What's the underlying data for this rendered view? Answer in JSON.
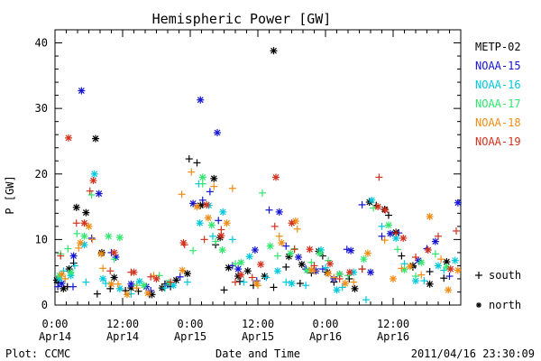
{
  "chart_data": {
    "type": "scatter",
    "title": "Hemispheric Power [GW]",
    "xlabel": "Date and Time",
    "ylabel": "P [GW]",
    "x_unit": "hours",
    "xlim": [
      0,
      72
    ],
    "ylim": [
      0,
      42
    ],
    "yticks": [
      0,
      10,
      20,
      30,
      40
    ],
    "x_ticks": [
      {
        "x": 0,
        "line1": "0:00",
        "line2": "Apr14"
      },
      {
        "x": 12,
        "line1": "12:00",
        "line2": "Apr14"
      },
      {
        "x": 24,
        "line1": "0:00",
        "line2": "Apr15"
      },
      {
        "x": 36,
        "line1": "12:00",
        "line2": "Apr15"
      },
      {
        "x": 48,
        "line1": "0:00",
        "line2": "Apr16"
      },
      {
        "x": 60,
        "line1": "12:00",
        "line2": "Apr16"
      }
    ],
    "grid": false,
    "legend_position": "right",
    "marker_legend": [
      {
        "symbol": "+",
        "label": "south"
      },
      {
        "symbol": "*",
        "label": "north"
      }
    ],
    "series": [
      {
        "name": "METP-02",
        "color": "#000000",
        "south": [
          [
            0.6,
            3.4
          ],
          [
            2.2,
            2.8
          ],
          [
            3.3,
            6.4
          ],
          [
            7.5,
            1.7
          ],
          [
            9.8,
            2.5
          ],
          [
            12.5,
            2.2
          ],
          [
            14.8,
            2.1
          ],
          [
            16.8,
            1.6
          ],
          [
            19.5,
            3.2
          ],
          [
            20.5,
            2.8
          ],
          [
            23.8,
            22.3
          ],
          [
            25.2,
            21.7
          ],
          [
            26.2,
            15.4
          ],
          [
            28.5,
            9.2
          ],
          [
            30,
            2.3
          ],
          [
            32.8,
            3.6
          ],
          [
            35.2,
            3.0
          ],
          [
            38.8,
            2.7
          ],
          [
            41,
            5.8
          ],
          [
            43.5,
            3.3
          ],
          [
            45.5,
            4.9
          ],
          [
            47.5,
            7.5
          ],
          [
            49.5,
            3.5
          ],
          [
            52.2,
            4.0
          ],
          [
            54.5,
            5.5
          ],
          [
            57,
            15.2
          ],
          [
            59.2,
            13.7
          ],
          [
            61.5,
            7.5
          ],
          [
            63.5,
            5.8
          ],
          [
            66.5,
            5.1
          ],
          [
            69,
            4.1
          ]
        ],
        "north": [
          [
            0.3,
            3.8
          ],
          [
            1.5,
            2.5
          ],
          [
            2.5,
            5.5
          ],
          [
            3.8,
            14.9
          ],
          [
            5.5,
            14.1
          ],
          [
            7.2,
            25.4
          ],
          [
            8.3,
            8.0
          ],
          [
            10.5,
            4.2
          ],
          [
            13.5,
            2.6
          ],
          [
            17.2,
            1.6
          ],
          [
            19,
            2.6
          ],
          [
            21.5,
            3.8
          ],
          [
            23.5,
            4.8
          ],
          [
            25.8,
            15.2
          ],
          [
            28.2,
            19.3
          ],
          [
            29.3,
            10.3
          ],
          [
            30.8,
            5.7
          ],
          [
            32.5,
            4.4
          ],
          [
            34.2,
            5.2
          ],
          [
            37.2,
            4.4
          ],
          [
            38.8,
            38.8
          ],
          [
            41.5,
            7.4
          ],
          [
            43.8,
            6.2
          ],
          [
            46.8,
            8.2
          ],
          [
            48.3,
            5.0
          ],
          [
            50.5,
            4.7
          ],
          [
            53.2,
            2.5
          ],
          [
            55.8,
            15.7
          ],
          [
            58.5,
            14.6
          ],
          [
            60.5,
            11.1
          ],
          [
            63.5,
            6.0
          ],
          [
            66.5,
            3.2
          ],
          [
            69.5,
            6.6
          ]
        ]
      },
      {
        "name": "NOAA-15",
        "color": "#1414d2",
        "south": [
          [
            0.5,
            2.8
          ],
          [
            3.2,
            2.8
          ],
          [
            6.5,
            10.2
          ],
          [
            10,
            8.0
          ],
          [
            17,
            2.2
          ],
          [
            22.2,
            4.3
          ],
          [
            26.2,
            16.0
          ],
          [
            27.5,
            17.3
          ],
          [
            29,
            12.9
          ],
          [
            31.5,
            6.0
          ],
          [
            35.8,
            3.7
          ],
          [
            38,
            14.5
          ],
          [
            41,
            9.0
          ],
          [
            44.5,
            5.5
          ],
          [
            47.5,
            5.5
          ],
          [
            51.8,
            8.5
          ],
          [
            54.5,
            15.3
          ],
          [
            58,
            10.5
          ],
          [
            61,
            11.0
          ],
          [
            66,
            8.6
          ],
          [
            70,
            4.4
          ]
        ],
        "north": [
          [
            1.2,
            3.3
          ],
          [
            3.3,
            7.5
          ],
          [
            4.7,
            32.7
          ],
          [
            7.8,
            17.0
          ],
          [
            10.8,
            7.3
          ],
          [
            13.5,
            3.2
          ],
          [
            16.2,
            2.8
          ],
          [
            20,
            3.2
          ],
          [
            24.5,
            15.5
          ],
          [
            25.8,
            31.3
          ],
          [
            28.8,
            26.3
          ],
          [
            32.5,
            5.5
          ],
          [
            35.5,
            8.4
          ],
          [
            39.8,
            14.2
          ],
          [
            43.2,
            7.3
          ],
          [
            46.3,
            5.2
          ],
          [
            49.5,
            4.0
          ],
          [
            52.5,
            8.3
          ],
          [
            56,
            5.0
          ],
          [
            59.5,
            10.9
          ],
          [
            64.5,
            6.8
          ],
          [
            67.5,
            9.7
          ],
          [
            71.5,
            15.6
          ]
        ]
      },
      {
        "name": "NOAA-16",
        "color": "#00c8dc",
        "south": [
          [
            1.5,
            5.2
          ],
          [
            3.5,
            6.0
          ],
          [
            5.5,
            3.5
          ],
          [
            9,
            3.3
          ],
          [
            13.5,
            1.7
          ],
          [
            19.5,
            2.6
          ],
          [
            23.5,
            3.5
          ],
          [
            25.5,
            18.5
          ],
          [
            28,
            10.5
          ],
          [
            31.5,
            10.0
          ],
          [
            33.5,
            3.5
          ],
          [
            37.5,
            4.2
          ],
          [
            41,
            3.5
          ],
          [
            44.5,
            3.0
          ],
          [
            48,
            5.7
          ],
          [
            51,
            2.7
          ],
          [
            55.2,
            0.8
          ],
          [
            58,
            12.0
          ],
          [
            62,
            6.3
          ],
          [
            65.5,
            3.7
          ],
          [
            69,
            5.3
          ]
        ],
        "north": [
          [
            0.8,
            4.0
          ],
          [
            2.8,
            4.5
          ],
          [
            5.2,
            9.2
          ],
          [
            7.0,
            20.0
          ],
          [
            8.5,
            4.0
          ],
          [
            11.5,
            2.5
          ],
          [
            15,
            3.6
          ],
          [
            21,
            3.0
          ],
          [
            25.7,
            12.5
          ],
          [
            27.3,
            15.2
          ],
          [
            29.8,
            14.2
          ],
          [
            34.5,
            7.4
          ],
          [
            39.5,
            5.2
          ],
          [
            42,
            3.3
          ],
          [
            47.2,
            8.4
          ],
          [
            50,
            2.3
          ],
          [
            53,
            5.0
          ],
          [
            56.2,
            16.0
          ],
          [
            60.5,
            10.2
          ],
          [
            64,
            3.7
          ],
          [
            68,
            6.0
          ],
          [
            71,
            6.8
          ]
        ]
      },
      {
        "name": "NOAA-17",
        "color": "#32e66e",
        "south": [
          [
            1.0,
            7.8
          ],
          [
            2.3,
            8.6
          ],
          [
            3.9,
            10.9
          ],
          [
            6.5,
            16.8
          ],
          [
            10.5,
            7.0
          ],
          [
            14.5,
            3.0
          ],
          [
            18.5,
            4.5
          ],
          [
            24.5,
            8.3
          ],
          [
            26.2,
            18.5
          ],
          [
            28.5,
            9.7
          ],
          [
            32,
            6.3
          ],
          [
            36.8,
            17.1
          ],
          [
            39.5,
            7.5
          ],
          [
            42.5,
            8.6
          ],
          [
            45.5,
            6.5
          ],
          [
            48.5,
            6.8
          ],
          [
            52,
            4.5
          ],
          [
            56.5,
            14.8
          ],
          [
            60.8,
            8.5
          ],
          [
            64,
            4.4
          ],
          [
            67.5,
            7.8
          ]
        ],
        "north": [
          [
            0.8,
            4.5
          ],
          [
            2.8,
            5.0
          ],
          [
            5.2,
            10.5
          ],
          [
            9.5,
            10.5
          ],
          [
            11.5,
            10.3
          ],
          [
            15.8,
            3.0
          ],
          [
            20.2,
            3.4
          ],
          [
            26.2,
            19.5
          ],
          [
            27.8,
            12.2
          ],
          [
            29.7,
            8.4
          ],
          [
            33,
            6.5
          ],
          [
            38.2,
            9.0
          ],
          [
            41.8,
            7.9
          ],
          [
            44.7,
            5.3
          ],
          [
            47,
            7.9
          ],
          [
            50.5,
            4.7
          ],
          [
            54.8,
            7.0
          ],
          [
            59.2,
            12.2
          ],
          [
            62,
            5.4
          ],
          [
            65,
            6.5
          ],
          [
            69.5,
            5.8
          ]
        ]
      },
      {
        "name": "NOAA-18",
        "color": "#f08c14",
        "south": [
          [
            1.8,
            4.0
          ],
          [
            4.2,
            8.7
          ],
          [
            6.6,
            10.0
          ],
          [
            8.5,
            5.6
          ],
          [
            11.2,
            3.2
          ],
          [
            14.5,
            2.6
          ],
          [
            17.5,
            4.5
          ],
          [
            22.5,
            16.9
          ],
          [
            24.2,
            20.3
          ],
          [
            28.2,
            18.1
          ],
          [
            31.5,
            17.8
          ],
          [
            36,
            3.0
          ],
          [
            39.8,
            10.5
          ],
          [
            43,
            11.6
          ],
          [
            46,
            5.2
          ],
          [
            49.5,
            4.2
          ],
          [
            53,
            3.5
          ],
          [
            58.5,
            9.9
          ],
          [
            61.5,
            5.6
          ],
          [
            65,
            4.6
          ],
          [
            68.5,
            7.0
          ]
        ],
        "north": [
          [
            1.2,
            4.7
          ],
          [
            4.5,
            9.5
          ],
          [
            6.0,
            12.0
          ],
          [
            8.2,
            7.8
          ],
          [
            10,
            3.2
          ],
          [
            12.8,
            1.6
          ],
          [
            16.5,
            1.8
          ],
          [
            22.6,
            5.3
          ],
          [
            25.2,
            15.0
          ],
          [
            27.2,
            13.3
          ],
          [
            30.5,
            12.5
          ],
          [
            35.8,
            3.3
          ],
          [
            40.2,
            9.5
          ],
          [
            42.7,
            12.8
          ],
          [
            45.5,
            5.4
          ],
          [
            48.5,
            4.8
          ],
          [
            51.5,
            3.3
          ],
          [
            55.5,
            7.9
          ],
          [
            60,
            4.0
          ],
          [
            63,
            5.9
          ],
          [
            66.5,
            13.5
          ],
          [
            69.8,
            2.3
          ],
          [
            71.5,
            5.3
          ]
        ]
      },
      {
        "name": "NOAA-19",
        "color": "#d2321e",
        "south": [
          [
            1.0,
            7.5
          ],
          [
            3.8,
            12.5
          ],
          [
            6.2,
            17.4
          ],
          [
            9.8,
            5.2
          ],
          [
            13.5,
            5.0
          ],
          [
            17,
            4.3
          ],
          [
            20.5,
            3.5
          ],
          [
            23,
            9.2
          ],
          [
            26.5,
            10.0
          ],
          [
            29.5,
            11.5
          ],
          [
            32,
            3.5
          ],
          [
            35,
            4.2
          ],
          [
            39,
            12.0
          ],
          [
            42.5,
            8.5
          ],
          [
            46,
            6.0
          ],
          [
            50.5,
            4.0
          ],
          [
            54.5,
            5.5
          ],
          [
            57.5,
            19.5
          ],
          [
            60.5,
            11.0
          ],
          [
            64,
            7.3
          ],
          [
            68,
            10.5
          ],
          [
            71.2,
            11.3
          ]
        ],
        "north": [
          [
            2.4,
            25.5
          ],
          [
            5.2,
            12.5
          ],
          [
            6.8,
            19.0
          ],
          [
            10.5,
            8.0
          ],
          [
            14,
            5.0
          ],
          [
            18,
            4.0
          ],
          [
            22.8,
            9.5
          ],
          [
            26.9,
            15.3
          ],
          [
            29.5,
            10.6
          ],
          [
            33,
            4.6
          ],
          [
            36.5,
            6.2
          ],
          [
            39.2,
            19.5
          ],
          [
            42,
            12.5
          ],
          [
            45.2,
            8.5
          ],
          [
            48.8,
            6.3
          ],
          [
            52.3,
            5.0
          ],
          [
            57.3,
            15.0
          ],
          [
            58.6,
            14.5
          ],
          [
            61.8,
            10.2
          ],
          [
            66.2,
            8.4
          ],
          [
            70.2,
            5.5
          ]
        ]
      }
    ]
  },
  "footer": {
    "left": "Plot: CCMC",
    "right": "2011/04/16 23:30:09"
  }
}
